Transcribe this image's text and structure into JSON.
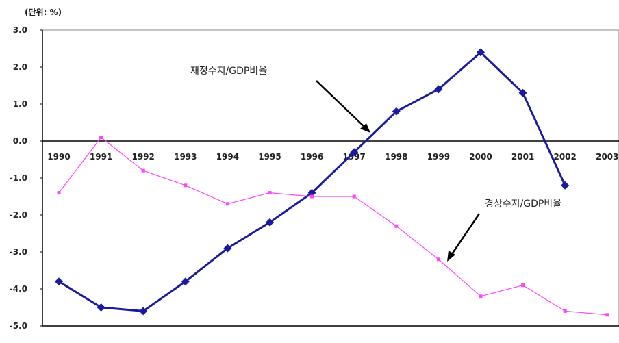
{
  "chart_data": {
    "type": "line",
    "unit_label": "(단위: %)",
    "categories": [
      "1990",
      "1991",
      "1992",
      "1993",
      "1994",
      "1995",
      "1996",
      "1997",
      "1998",
      "1999",
      "2000",
      "2001",
      "2002",
      "2003"
    ],
    "y_ticks": [
      "3.0",
      "2.0",
      "1.0",
      "0.0",
      "-1.0",
      "-2.0",
      "-3.0",
      "-4.0",
      "-5.0"
    ],
    "ylim": [
      -5,
      3
    ],
    "grid": false,
    "series": [
      {
        "name": "재정수지/GDP비율",
        "color": "#1a1aa0",
        "marker": "diamond",
        "values": [
          -3.8,
          -4.5,
          -4.6,
          -3.8,
          -2.9,
          -2.2,
          -1.4,
          -0.3,
          0.8,
          1.4,
          2.4,
          1.3,
          -1.2,
          null
        ]
      },
      {
        "name": "경상수지/GDP비율",
        "color": "#ff44ff",
        "marker": "square",
        "values": [
          -1.4,
          0.1,
          -0.8,
          -1.2,
          -1.7,
          -1.4,
          -1.5,
          -1.5,
          -2.3,
          -3.2,
          -4.2,
          -3.9,
          -4.6,
          -4.7
        ]
      }
    ],
    "annotations": [
      "재정수지/GDP비율",
      "경상수지/GDP비율"
    ]
  }
}
